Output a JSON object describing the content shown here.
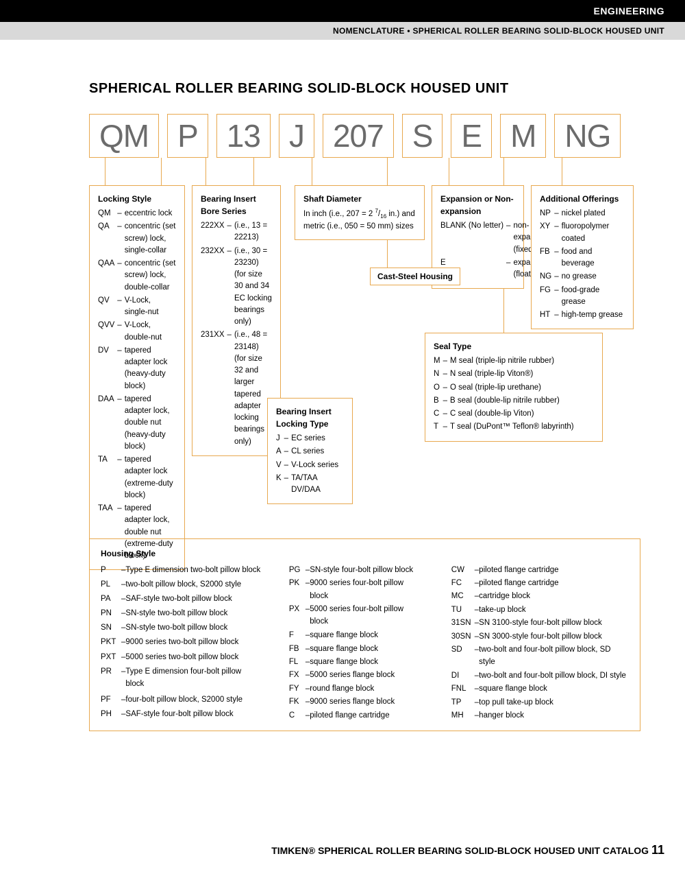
{
  "header": {
    "category": "ENGINEERING",
    "breadcrumb": "NOMENCLATURE • SPHERICAL ROLLER BEARING SOLID-BLOCK HOUSED UNIT"
  },
  "title": "SPHERICAL ROLLER BEARING SOLID-BLOCK HOUSED UNIT",
  "code_parts": [
    "QM",
    "P",
    "13",
    "J",
    "207",
    "S",
    "E",
    "M",
    "NG"
  ],
  "locking_style": {
    "heading": "Locking Style",
    "items": [
      [
        "QM",
        "eccentric lock"
      ],
      [
        "QA",
        "concentric (set screw) lock, single-collar"
      ],
      [
        "QAA",
        "concentric (set screw) lock, double-collar"
      ],
      [
        "QV",
        "V-Lock, single-nut"
      ],
      [
        "QVV",
        "V-Lock, double-nut"
      ],
      [
        "DV",
        "tapered adapter lock (heavy-duty block)"
      ],
      [
        "DAA",
        "tapered adapter lock, double nut (heavy-duty block)"
      ],
      [
        "TA",
        "tapered adapter lock (extreme-duty block)"
      ],
      [
        "TAA",
        "tapered adapter lock, double nut (extreme-duty block)"
      ]
    ]
  },
  "bore_series": {
    "heading": "Bearing Insert Bore Series",
    "items": [
      [
        "222XX",
        "(i.e., 13 = 22213)"
      ],
      [
        "232XX",
        "(i.e., 30 = 23230) (for size 30 and 34 EC locking bearings only)"
      ],
      [
        "231XX",
        "(i.e., 48 = 23148) (for size 32 and larger tapered adapter locking bearings only)"
      ]
    ]
  },
  "locking_type": {
    "heading": "Bearing Insert Locking Type",
    "items": [
      [
        "J",
        "EC series"
      ],
      [
        "A",
        "CL series"
      ],
      [
        "V",
        "V-Lock series"
      ],
      [
        "K",
        "TA/TAA DV/DAA"
      ]
    ]
  },
  "shaft_diameter": {
    "heading": "Shaft Diameter",
    "text": "In inch (i.e., 207 = 2 7/16 in.) and metric (i.e., 050 = 50 mm) sizes"
  },
  "cast_steel": "Cast-Steel Housing",
  "expansion": {
    "heading": "Expansion or Non-expansion",
    "items": [
      [
        "BLANK (No letter)",
        "non-expansion (fixed)"
      ],
      [
        "E",
        "expansion (floating)"
      ]
    ]
  },
  "seal_type": {
    "heading": "Seal Type",
    "items": [
      [
        "M",
        "M seal (triple-lip nitrile rubber)"
      ],
      [
        "N",
        "N seal (triple-lip Viton®)"
      ],
      [
        "O",
        "O seal (triple-lip urethane)"
      ],
      [
        "B",
        "B seal (double-lip nitrile rubber)"
      ],
      [
        "C",
        "C seal (double-lip Viton)"
      ],
      [
        "T",
        "T seal (DuPont™ Teflon® labyrinth)"
      ]
    ]
  },
  "additional": {
    "heading": "Additional Offerings",
    "items": [
      [
        "NP",
        "nickel plated"
      ],
      [
        "XY",
        "fluoropolymer coated"
      ],
      [
        "FB",
        "food and beverage"
      ],
      [
        "NG",
        "no grease"
      ],
      [
        "FG",
        "food-grade grease"
      ],
      [
        "HT",
        "high-temp grease"
      ]
    ]
  },
  "housing": {
    "heading": "Housing Style",
    "col1": [
      [
        "P",
        "Type E dimension two-bolt pillow block"
      ],
      [
        "PL",
        "two-bolt pillow block, S2000 style"
      ],
      [
        "PA",
        "SAF-style two-bolt pillow block"
      ],
      [
        "PN",
        "SN-style two-bolt pillow block"
      ],
      [
        "SN",
        "SN-style two-bolt pillow block"
      ],
      [
        "PKT",
        "9000 series two-bolt pillow block"
      ],
      [
        "PXT",
        "5000 series two-bolt pillow block"
      ],
      [
        "PR",
        "Type E dimension four-bolt pillow block"
      ],
      [
        "PF",
        "four-bolt pillow block, S2000 style"
      ],
      [
        "PH",
        "SAF-style four-bolt pillow block"
      ]
    ],
    "col2": [
      [
        "PG",
        "SN-style four-bolt pillow block"
      ],
      [
        "PK",
        "9000 series four-bolt pillow block"
      ],
      [
        "PX",
        "5000 series four-bolt pillow block"
      ],
      [
        "F",
        "square flange block"
      ],
      [
        "FB",
        "square flange block"
      ],
      [
        "FL",
        "square flange block"
      ],
      [
        "FX",
        "5000 series flange block"
      ],
      [
        "FY",
        "round flange block"
      ],
      [
        "FK",
        "9000 series flange block"
      ],
      [
        "C",
        "piloted flange cartridge"
      ]
    ],
    "col3": [
      [
        "CW",
        "piloted flange cartridge"
      ],
      [
        "FC",
        "piloted flange cartridge"
      ],
      [
        "MC",
        "cartridge block"
      ],
      [
        "TU",
        "take-up block"
      ],
      [
        "31SN",
        "SN 3100-style four-bolt pillow block"
      ],
      [
        "30SN",
        "SN 3000-style four-bolt pillow block"
      ],
      [
        "SD",
        "two-bolt and four-bolt pillow block, SD style"
      ],
      [
        "DI",
        "two-bolt and four-bolt pillow block, DI style"
      ],
      [
        "FNL",
        "square flange block"
      ],
      [
        "TP",
        "top pull take-up block"
      ],
      [
        "MH",
        "hanger block"
      ]
    ]
  },
  "footer": {
    "text": "TIMKEN® SPHERICAL ROLLER BEARING SOLID-BLOCK HOUSED UNIT CATALOG",
    "page": "11"
  },
  "colors": {
    "border": "#e8a84e",
    "code_text": "#6b6b6b"
  }
}
